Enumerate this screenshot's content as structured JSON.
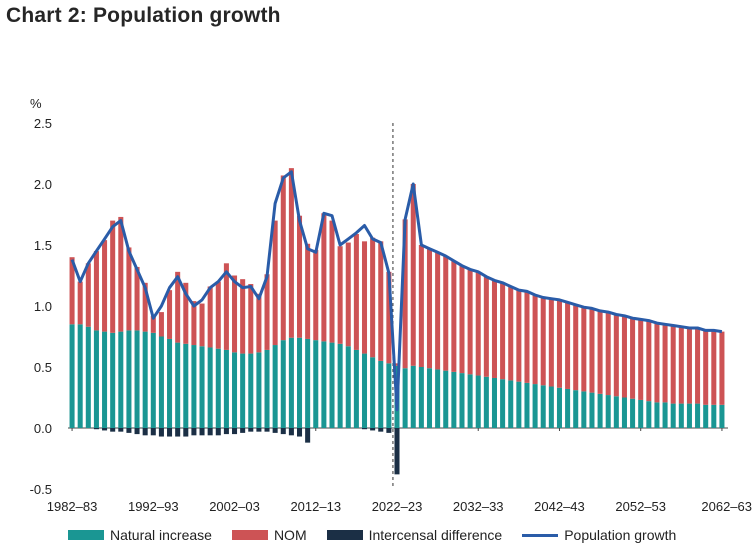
{
  "chart_data": {
    "type": "bar",
    "title": "Chart 2: Population growth",
    "ylabel": "%",
    "ylim": [
      -0.5,
      2.5
    ],
    "yticks": [
      "2.5",
      "2.0",
      "1.5",
      "1.0",
      "0.5",
      "0.0",
      "-0.5"
    ],
    "ytick_values": [
      2.5,
      2.0,
      1.5,
      1.0,
      0.5,
      0.0,
      -0.5
    ],
    "x_start_year": 1982,
    "projection_start_year": 2022,
    "xtick_labels": [
      "1982–83",
      "1992–93",
      "2002–03",
      "2012–13",
      "2022–23",
      "2032–33",
      "2042–43",
      "2052–53",
      "2062–63"
    ],
    "xtick_years": [
      1982,
      1992,
      2002,
      2012,
      2022,
      2032,
      2042,
      2052,
      2062
    ],
    "stacked": true,
    "series": [
      {
        "name": "Natural increase",
        "color": "#1a9693",
        "values": [
          0.85,
          0.85,
          0.83,
          0.8,
          0.79,
          0.78,
          0.79,
          0.8,
          0.8,
          0.79,
          0.78,
          0.75,
          0.73,
          0.7,
          0.69,
          0.68,
          0.67,
          0.66,
          0.65,
          0.64,
          0.62,
          0.61,
          0.61,
          0.62,
          0.64,
          0.68,
          0.72,
          0.74,
          0.74,
          0.73,
          0.72,
          0.71,
          0.7,
          0.69,
          0.67,
          0.64,
          0.61,
          0.58,
          0.55,
          0.53,
          0.51,
          0.49,
          0.51,
          0.5,
          0.49,
          0.48,
          0.47,
          0.46,
          0.45,
          0.44,
          0.43,
          0.42,
          0.41,
          0.4,
          0.39,
          0.38,
          0.37,
          0.36,
          0.35,
          0.34,
          0.33,
          0.32,
          0.31,
          0.3,
          0.29,
          0.28,
          0.27,
          0.26,
          0.25,
          0.24,
          0.23,
          0.22,
          0.21,
          0.21,
          0.2,
          0.2,
          0.2,
          0.2,
          0.19,
          0.19,
          0.19
        ]
      },
      {
        "name": "NOM",
        "color": "#cd5355",
        "values": [
          0.55,
          0.35,
          0.52,
          0.65,
          0.75,
          0.92,
          0.94,
          0.68,
          0.52,
          0.4,
          0.14,
          0.2,
          0.4,
          0.58,
          0.5,
          0.36,
          0.35,
          0.5,
          0.55,
          0.71,
          0.63,
          0.61,
          0.57,
          0.48,
          0.62,
          1.02,
          1.35,
          1.39,
          1.0,
          0.78,
          0.74,
          1.05,
          1.0,
          0.8,
          0.85,
          0.95,
          0.92,
          0.98,
          0.98,
          0.75,
          0.02,
          1.22,
          1.49,
          1.0,
          0.98,
          0.96,
          0.94,
          0.91,
          0.88,
          0.86,
          0.85,
          0.82,
          0.8,
          0.79,
          0.77,
          0.75,
          0.75,
          0.73,
          0.72,
          0.72,
          0.72,
          0.71,
          0.7,
          0.69,
          0.69,
          0.68,
          0.68,
          0.67,
          0.67,
          0.66,
          0.66,
          0.66,
          0.65,
          0.64,
          0.64,
          0.63,
          0.62,
          0.62,
          0.61,
          0.61,
          0.6
        ]
      },
      {
        "name": "Intercensal difference",
        "color": "#1b2f45",
        "values": [
          0,
          0,
          0,
          -0.01,
          -0.02,
          -0.03,
          -0.03,
          -0.04,
          -0.05,
          -0.06,
          -0.06,
          -0.07,
          -0.07,
          -0.07,
          -0.07,
          -0.06,
          -0.06,
          -0.06,
          -0.06,
          -0.05,
          -0.05,
          -0.04,
          -0.03,
          -0.03,
          -0.03,
          -0.04,
          -0.05,
          -0.06,
          -0.07,
          -0.12,
          0,
          0,
          0,
          0,
          0,
          0,
          -0.01,
          -0.02,
          -0.03,
          -0.04,
          -0.38,
          0,
          0,
          0,
          0,
          0,
          0,
          0,
          0,
          0,
          0,
          0,
          0,
          0,
          0,
          0,
          0,
          0,
          0,
          0,
          0,
          0,
          0,
          0,
          0,
          0,
          0,
          0,
          0,
          0,
          0,
          0,
          0,
          0,
          0,
          0,
          0,
          0,
          0,
          0,
          0
        ]
      },
      {
        "name": "Population growth",
        "color": "#2a5ca8",
        "type": "line",
        "values": [
          1.38,
          1.2,
          1.35,
          1.45,
          1.55,
          1.65,
          1.7,
          1.45,
          1.3,
          1.15,
          0.9,
          1.0,
          1.15,
          1.24,
          1.1,
          1.0,
          1.05,
          1.15,
          1.2,
          1.28,
          1.2,
          1.15,
          1.16,
          1.06,
          1.24,
          1.84,
          2.05,
          2.1,
          1.7,
          1.47,
          1.44,
          1.76,
          1.74,
          1.5,
          1.55,
          1.6,
          1.66,
          1.55,
          1.52,
          1.27,
          0.15,
          1.71,
          2.0,
          1.5,
          1.47,
          1.44,
          1.41,
          1.37,
          1.33,
          1.3,
          1.28,
          1.24,
          1.21,
          1.19,
          1.16,
          1.13,
          1.12,
          1.09,
          1.07,
          1.06,
          1.05,
          1.03,
          1.01,
          0.99,
          0.98,
          0.96,
          0.95,
          0.93,
          0.92,
          0.9,
          0.89,
          0.88,
          0.86,
          0.85,
          0.84,
          0.83,
          0.82,
          0.82,
          0.8,
          0.8,
          0.79
        ]
      }
    ]
  }
}
